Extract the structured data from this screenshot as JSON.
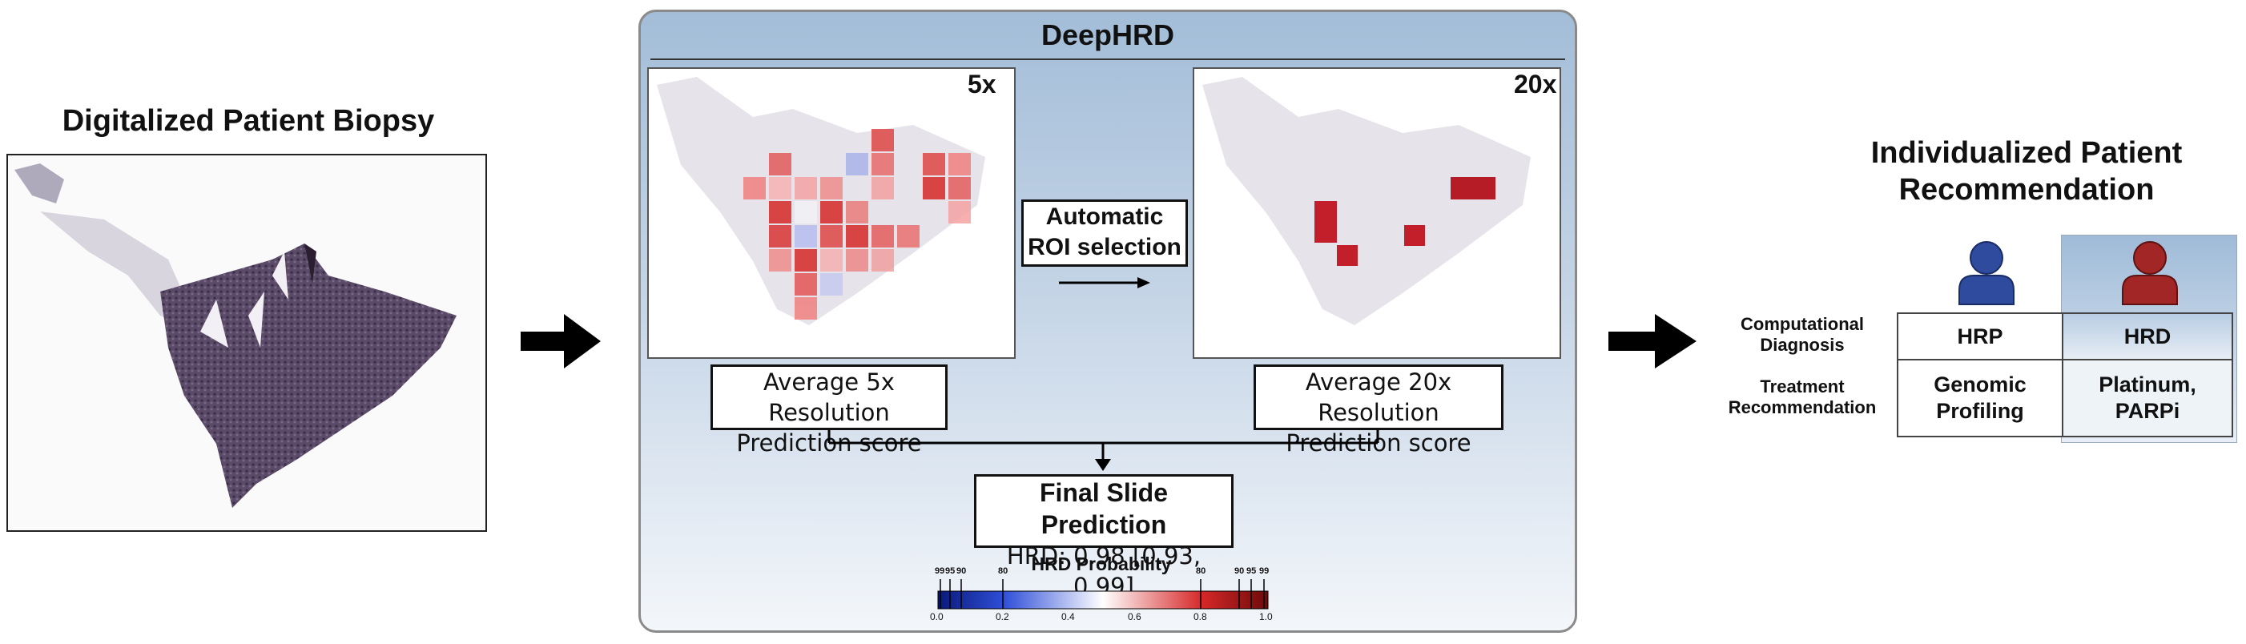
{
  "left": {
    "title": "Digitalized Patient Biopsy"
  },
  "deephrd": {
    "title": "DeepHRD",
    "map_5x_label": "5x",
    "map_20x_label": "20x",
    "roi_line1": "Automatic",
    "roi_line2": "ROI selection",
    "avg5_line1": "Average 5x Resolution",
    "avg5_line2": "Prediction score",
    "avg20_line1": "Average 20x Resolution",
    "avg20_line2": "Prediction score",
    "final_title": "Final Slide Prediction",
    "final_value": "HRD: 0.98 [0.93, 0.99]",
    "colorbar": {
      "title": "HRD Probability",
      "tick_labels": [
        "0.0",
        "0.2",
        "0.4",
        "0.6",
        "0.8",
        "1.0"
      ],
      "percentile_labels_left": [
        "99",
        "95",
        "90",
        "80"
      ],
      "percentile_labels_right": [
        "80",
        "90",
        "95",
        "99"
      ],
      "colors": {
        "low": "#0a1a7a",
        "mid": "#ffffff",
        "high": "#6e0a0a",
        "blue": "#2f4fd8",
        "red": "#d62828"
      }
    }
  },
  "recommendation": {
    "title_line1": "Individualized Patient",
    "title_line2": "Recommendation",
    "rows": [
      {
        "label_line1": "Computational",
        "label_line2": "Diagnosis"
      },
      {
        "label_line1": "Treatment",
        "label_line2": "Recommendation"
      }
    ],
    "hrp": {
      "diagnosis": "HRP",
      "treatment_line1": "Genomic",
      "treatment_line2": "Profiling",
      "color": "#2e4b9e"
    },
    "hrd": {
      "diagnosis": "HRD",
      "treatment_line1": "Platinum,",
      "treatment_line2": "PARPi",
      "color": "#a32626"
    }
  }
}
